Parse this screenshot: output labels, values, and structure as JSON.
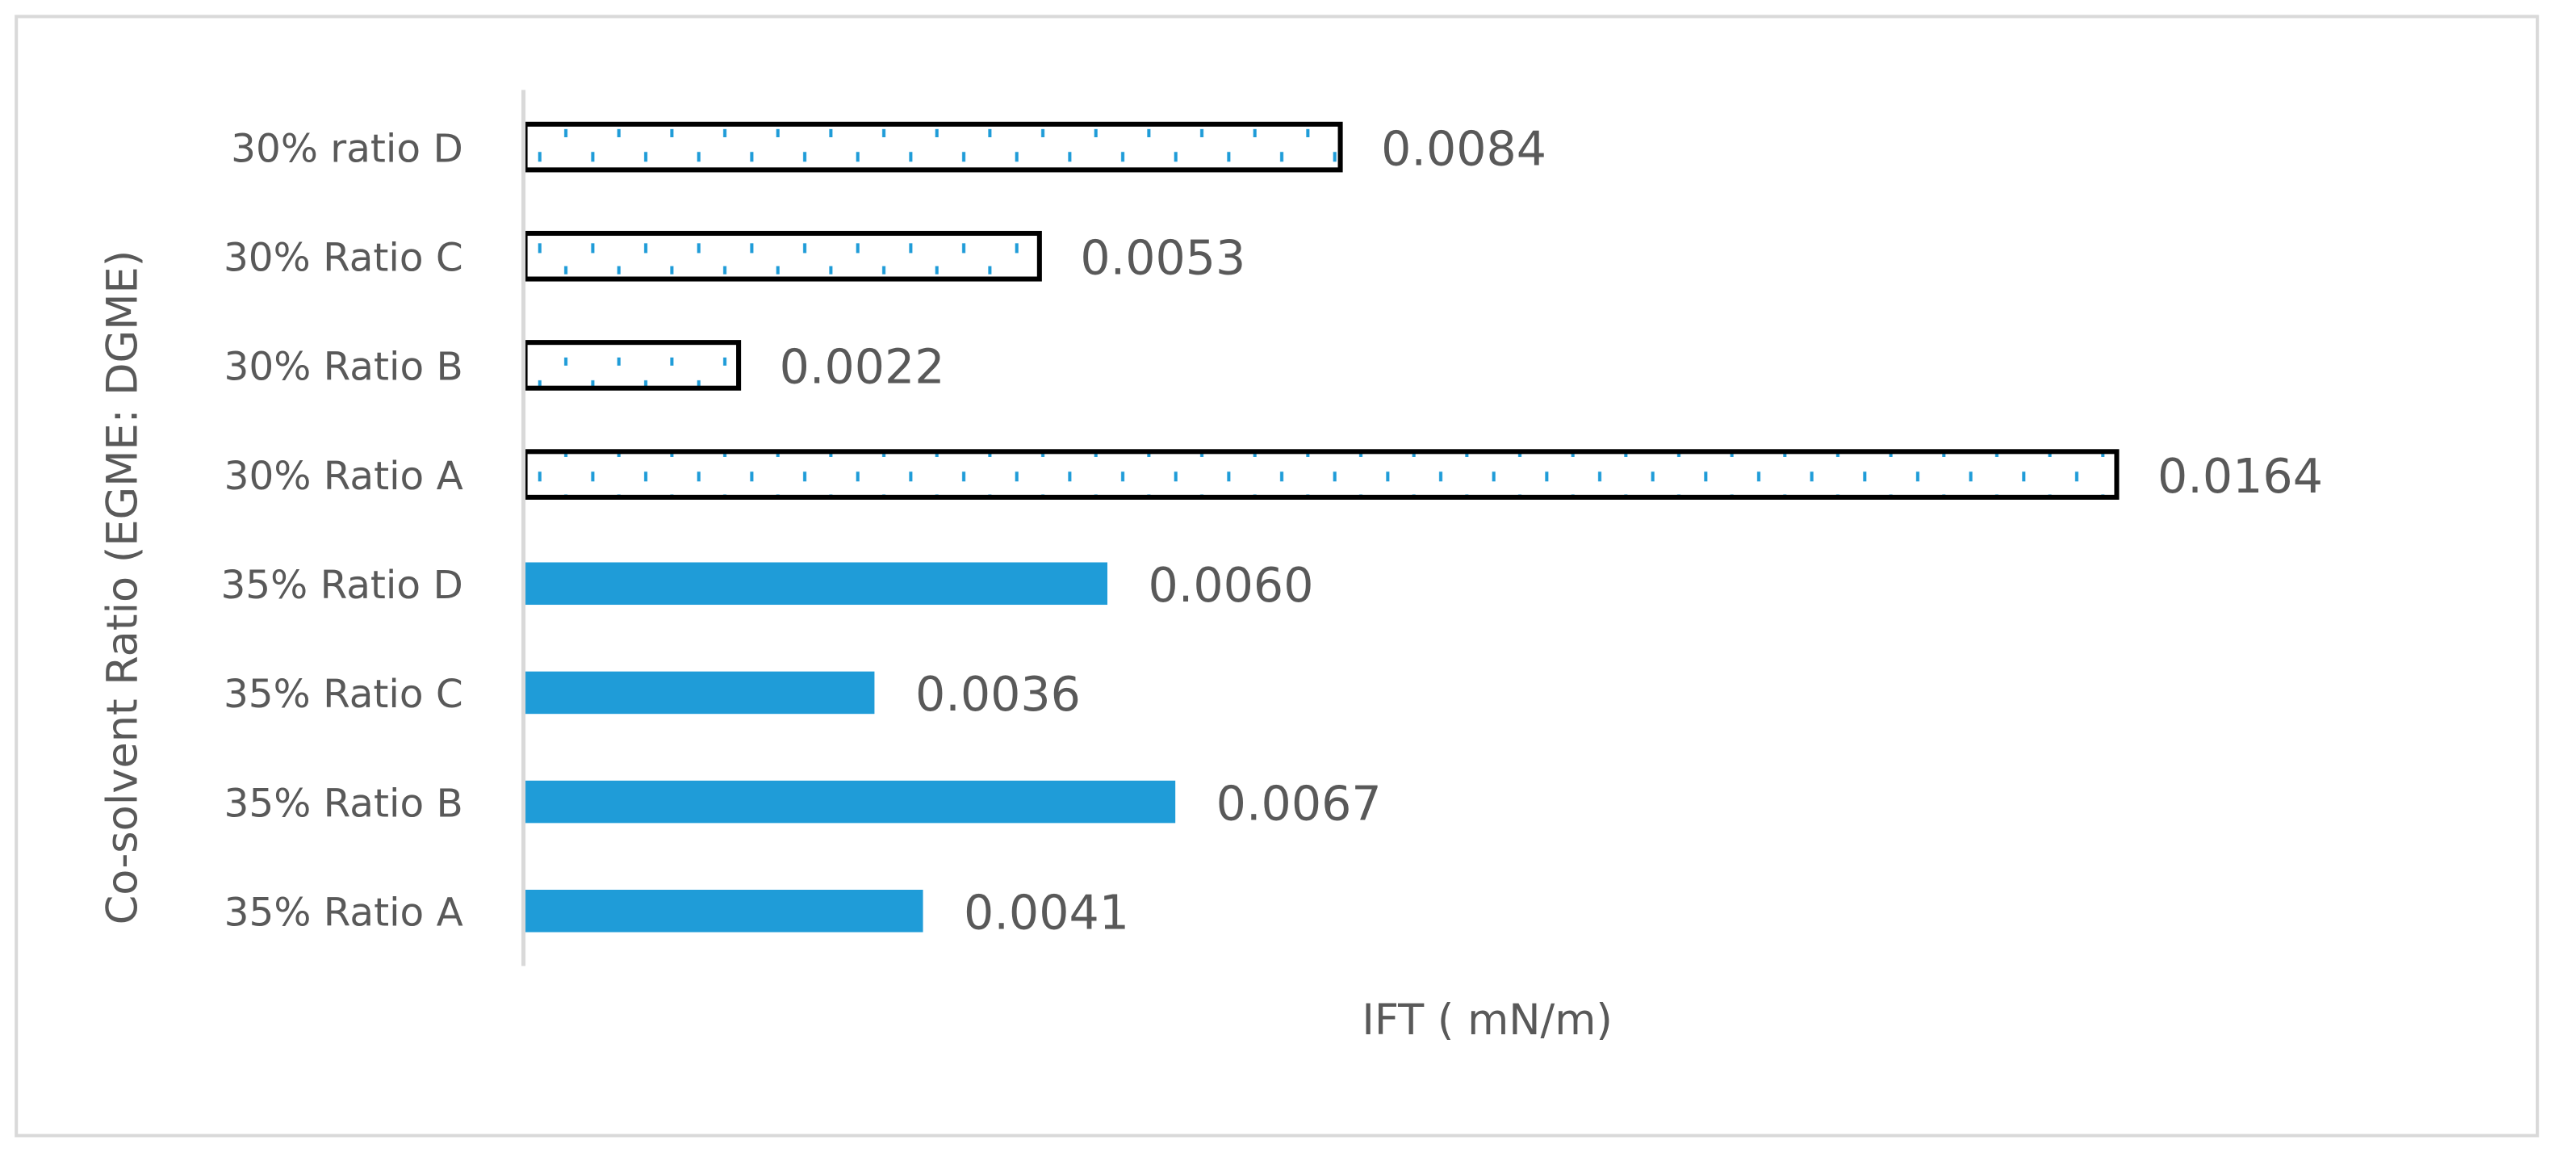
{
  "chart_data": {
    "type": "bar",
    "orientation": "horizontal",
    "title": "",
    "xlabel": "IFT ( mN/m)",
    "ylabel": "Co-solvent Ratio (EGME: DGME)",
    "xlim": [
      0,
      0.0164
    ],
    "grid": false,
    "legend": "none",
    "categories": [
      "30% ratio D",
      "30% Ratio C",
      "30% Ratio B",
      "30% Ratio A",
      "35% Ratio D",
      "35% Ratio C",
      "35% Ratio B",
      "35% Ratio A"
    ],
    "values": [
      0.0084,
      0.0053,
      0.0022,
      0.0164,
      0.006,
      0.0036,
      0.0067,
      0.0041
    ],
    "data_labels": [
      "0.0084",
      "0.0053",
      "0.0022",
      "0.0164",
      "0.0060",
      "0.0036",
      "0.0067",
      "0.0041"
    ],
    "styles": [
      "dotted",
      "dotted",
      "dotted",
      "dotted",
      "solid",
      "solid",
      "solid",
      "solid"
    ],
    "colors": {
      "solid_fill": "#1f9cd8",
      "dot_color": "#1f9cd8",
      "outline": "#000000",
      "text": "#595959",
      "axis": "#d9d9d9",
      "frame": "#d9d9d9"
    }
  }
}
